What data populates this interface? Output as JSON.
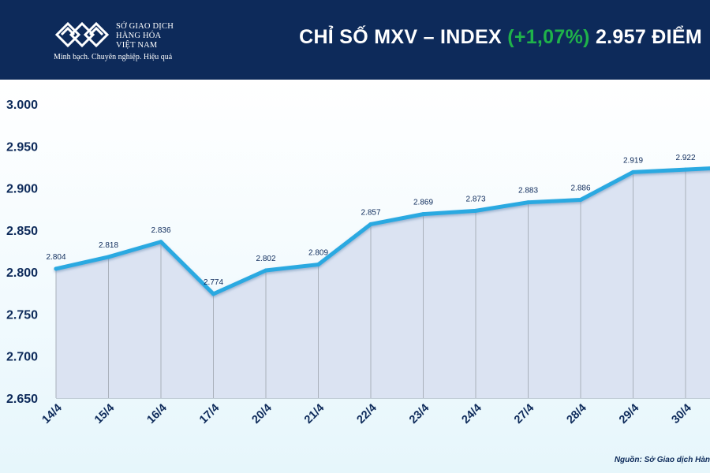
{
  "header": {
    "logo": {
      "name_line1": "SỞ GIAO DỊCH",
      "name_line2": "HÀNG HÓA",
      "name_line3": "VIỆT NAM",
      "tagline": "Minh bạch. Chuyên nghiệp. Hiệu quả"
    },
    "title_main": "CHỈ SỐ MXV – INDEX ",
    "title_change": "(+1,07%)",
    "title_value": " 2.957 ĐIỂM"
  },
  "source": "Nguồn: Sở Giao dịch Hàn",
  "colors": {
    "header_bg": "#0d2a5a",
    "line": "#29a9e1",
    "area": "#dbe3f2",
    "positive": "#1fb24a",
    "axis_text": "#0d2a5a"
  },
  "chart_data": {
    "type": "area",
    "title": "CHỈ SỐ MXV – INDEX (+1,07%) 2.957 ĐIỂM",
    "categories": [
      "14/4",
      "15/4",
      "16/4",
      "17/4",
      "20/4",
      "21/4",
      "22/4",
      "23/4",
      "24/4",
      "27/4",
      "28/4",
      "29/4",
      "30/4"
    ],
    "values": [
      2804,
      2818,
      2836,
      2774,
      2802,
      2809,
      2857,
      2869,
      2873,
      2883,
      2886,
      2919,
      2922
    ],
    "data_labels": [
      "2.804",
      "2.818",
      "2.836",
      "2.774",
      "2.802",
      "2.809",
      "2.857",
      "2.869",
      "2.873",
      "2.883",
      "2.886",
      "2.919",
      "2.922"
    ],
    "partial_next_value": 2925,
    "ylim": [
      2650,
      3000
    ],
    "yticks": [
      2650,
      2700,
      2750,
      2800,
      2850,
      2900,
      2950,
      3000
    ],
    "ytick_labels": [
      "2.650",
      "2.700",
      "2.750",
      "2.800",
      "2.850",
      "2.900",
      "2.950",
      "3.000"
    ],
    "xlabel": "",
    "ylabel": "",
    "grid": false,
    "legend": "none"
  }
}
